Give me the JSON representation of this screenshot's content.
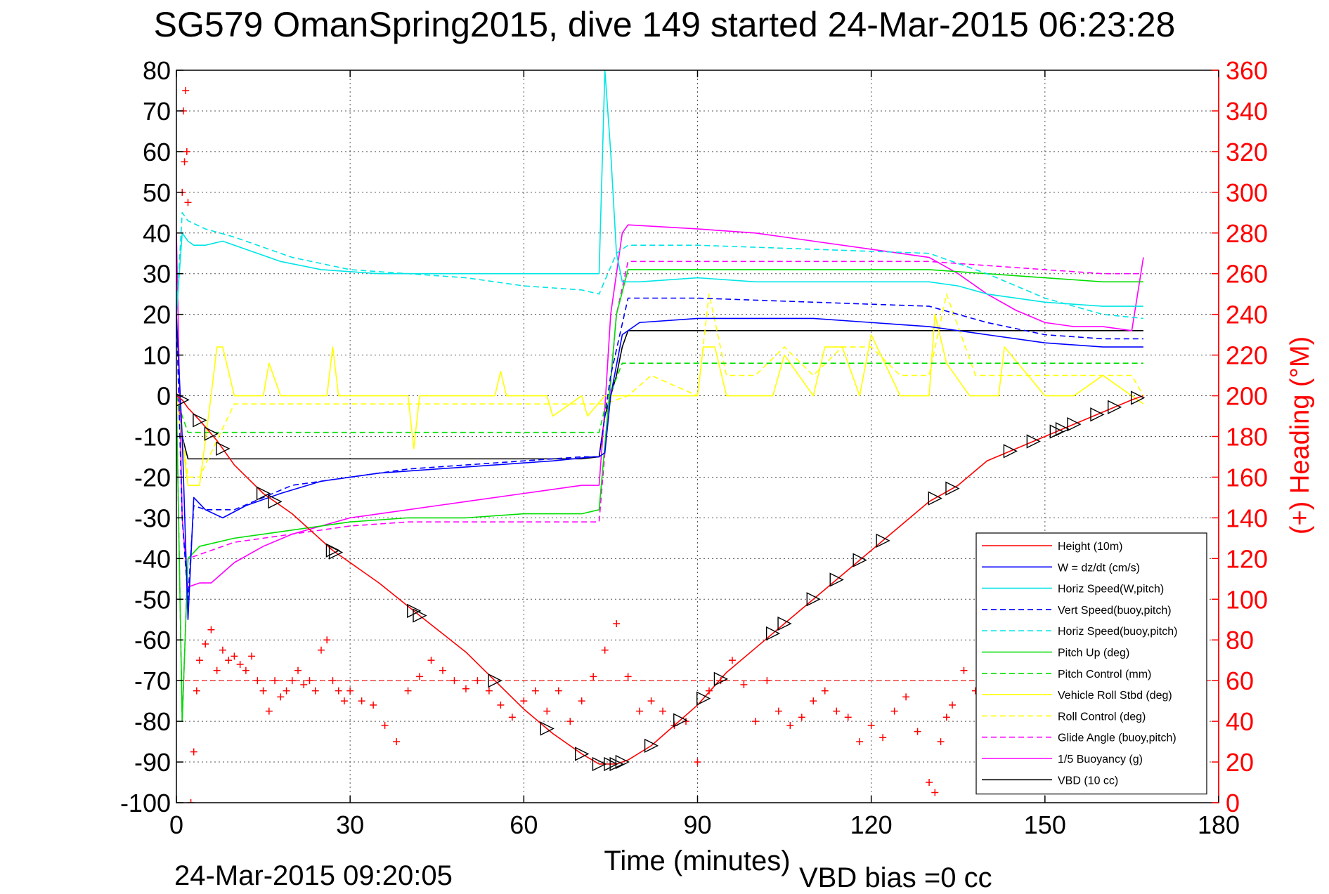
{
  "title": "SG579 OmanSpring2015, dive 149 started 24-Mar-2015 06:23:28",
  "footer": {
    "end_time": "24-Mar-2015 09:20:05",
    "vbd_bias": "VBD bias =0 cc"
  },
  "chart_data": {
    "type": "line",
    "xlabel": "Time (minutes)",
    "ylabel_right": "(+) Heading (°M)",
    "xlim": [
      0,
      180
    ],
    "ylim_left": [
      -100,
      80
    ],
    "ylim_right": [
      0,
      360
    ],
    "x_ticks": [
      0,
      30,
      60,
      90,
      120,
      150,
      180
    ],
    "y_ticks_left": [
      80,
      70,
      60,
      50,
      40,
      30,
      20,
      10,
      0,
      -10,
      -20,
      -30,
      -40,
      -50,
      -60,
      -70,
      -80,
      -90,
      -100
    ],
    "y_ticks_right": [
      360,
      340,
      320,
      300,
      280,
      260,
      240,
      220,
      200,
      180,
      160,
      140,
      120,
      100,
      80,
      60,
      40,
      20,
      0
    ],
    "grid": true,
    "legend_position": "bottom-right",
    "legend": [
      {
        "name": "Height (10m)",
        "color": "#ff0000",
        "dash": "solid"
      },
      {
        "name": "W = dz/dt (cm/s)",
        "color": "#0000ff",
        "dash": "solid"
      },
      {
        "name": "Horiz Speed(W,pitch)",
        "color": "#00e5e5",
        "dash": "solid"
      },
      {
        "name": "Vert Speed(buoy,pitch)",
        "color": "#0000ff",
        "dash": "dashed"
      },
      {
        "name": "Horiz Speed(buoy,pitch)",
        "color": "#00e5e5",
        "dash": "dashed"
      },
      {
        "name": "Pitch Up (deg)",
        "color": "#00dd00",
        "dash": "solid"
      },
      {
        "name": "Pitch Control (mm)",
        "color": "#00dd00",
        "dash": "dashed"
      },
      {
        "name": "Vehicle Roll Stbd (deg)",
        "color": "#ffff00",
        "dash": "solid"
      },
      {
        "name": "Roll Control (deg)",
        "color": "#ffff00",
        "dash": "dashed"
      },
      {
        "name": "Glide Angle (buoy,pitch)",
        "color": "#ff00ff",
        "dash": "dashed"
      },
      {
        "name": "1/5 Buoyancy (g)",
        "color": "#ff00ff",
        "dash": "solid"
      },
      {
        "name": "VBD (10 cc)",
        "color": "#000000",
        "dash": "solid"
      }
    ],
    "series": [
      {
        "name": "Height (10m)",
        "x": [
          0,
          1,
          2,
          4,
          7,
          10,
          15,
          20,
          27,
          35,
          42,
          50,
          55,
          60,
          65,
          70,
          73,
          76,
          78,
          82,
          86,
          90,
          95,
          100,
          105,
          110,
          115,
          120,
          125,
          130,
          135,
          140,
          145,
          150,
          155,
          160,
          165,
          167
        ],
        "y": [
          0,
          -1,
          -3,
          -6,
          -11,
          -17,
          -24,
          -29,
          -38,
          -46,
          -54,
          -63,
          -70,
          -77,
          -83,
          -88,
          -90.5,
          -90.5,
          -89.5,
          -86,
          -81,
          -76,
          -68,
          -62,
          -56,
          -50,
          -44,
          -38,
          -32,
          -26,
          -22,
          -16,
          -13,
          -10,
          -7,
          -4,
          -1,
          0
        ]
      },
      {
        "name": "W = dz/dt (cm/s)",
        "x": [
          0,
          1,
          2,
          3,
          5,
          8,
          12,
          18,
          25,
          35,
          45,
          55,
          65,
          72,
          73,
          74,
          75,
          77,
          80,
          90,
          100,
          110,
          120,
          130,
          135,
          140,
          150,
          160,
          167
        ],
        "y": [
          20,
          -10,
          -55,
          -25,
          -28,
          -30,
          -27,
          -24,
          -21,
          -19,
          -18,
          -17,
          -16,
          -15,
          -15,
          -14,
          0,
          15,
          18,
          19,
          19,
          19,
          18,
          17,
          16,
          15,
          13,
          12,
          12
        ]
      },
      {
        "name": "Horiz Speed(W,pitch)",
        "x": [
          0,
          1,
          2,
          3,
          5,
          8,
          12,
          18,
          25,
          35,
          45,
          55,
          65,
          72,
          73,
          74,
          75,
          76,
          77,
          80,
          90,
          100,
          110,
          120,
          130,
          135,
          140,
          150,
          160,
          167
        ],
        "y": [
          20,
          40,
          38,
          37,
          37,
          38,
          36,
          33,
          31,
          30,
          30,
          30,
          30,
          30,
          30,
          80,
          60,
          35,
          28,
          28,
          29,
          28,
          28,
          28,
          28,
          27,
          25,
          23,
          22,
          22
        ]
      },
      {
        "name": "Vert Speed(buoy,pitch)",
        "x": [
          0,
          1,
          2,
          3,
          5,
          10,
          20,
          30,
          40,
          50,
          60,
          70,
          73,
          75,
          78,
          90,
          110,
          130,
          140,
          150,
          160,
          167
        ],
        "y": [
          20,
          -30,
          -50,
          -27,
          -28,
          -28,
          -22,
          -20,
          -18,
          -17,
          -16,
          -15,
          -15,
          5,
          24,
          24,
          23,
          22,
          18,
          15,
          14,
          14
        ]
      },
      {
        "name": "Horiz Speed(buoy,pitch)",
        "x": [
          0,
          1,
          2,
          5,
          10,
          20,
          30,
          40,
          50,
          60,
          70,
          73,
          76,
          78,
          90,
          110,
          130,
          140,
          150,
          160,
          167
        ],
        "y": [
          20,
          45,
          43,
          41,
          39,
          34,
          31,
          30,
          29,
          27,
          26,
          25,
          35,
          37,
          37,
          36,
          35,
          30,
          24,
          20,
          19
        ]
      },
      {
        "name": "Pitch Up (deg)",
        "x": [
          0,
          1,
          2,
          4,
          10,
          20,
          30,
          40,
          50,
          60,
          70,
          73,
          76,
          78,
          90,
          110,
          130,
          140,
          150,
          160,
          167
        ],
        "y": [
          0,
          -80,
          -40,
          -37,
          -35,
          -33,
          -31,
          -30,
          -30,
          -29,
          -29,
          -28,
          20,
          31,
          31,
          31,
          31,
          30,
          29,
          28,
          28
        ]
      },
      {
        "name": "Pitch Control (mm)",
        "x": [
          0,
          1,
          2,
          4,
          40,
          73,
          74,
          77,
          100,
          130,
          167
        ],
        "y": [
          0,
          -5,
          -9,
          -9,
          -9,
          -9,
          -3,
          8,
          8,
          8,
          8
        ]
      },
      {
        "name": "Vehicle Roll Stbd (deg)",
        "x": [
          0,
          2,
          4,
          6,
          7,
          8,
          10,
          15,
          16,
          18,
          26,
          27,
          28,
          40,
          41,
          42,
          55,
          56,
          57,
          64,
          65,
          70,
          71,
          74,
          75,
          78,
          82,
          84,
          90,
          91,
          93,
          95,
          103,
          105,
          110,
          112,
          115,
          118,
          120,
          125,
          130,
          131,
          133,
          137,
          142,
          143,
          150,
          155,
          160,
          165,
          167
        ],
        "y": [
          0,
          -22,
          -22,
          0,
          12,
          12,
          0,
          0,
          8,
          0,
          0,
          12,
          0,
          0,
          -13,
          0,
          0,
          6,
          0,
          0,
          -5,
          0,
          -5,
          0,
          0,
          0,
          0,
          0,
          0,
          12,
          12,
          0,
          0,
          10,
          0,
          12,
          12,
          0,
          15,
          0,
          0,
          20,
          8,
          0,
          0,
          12,
          0,
          0,
          5,
          0,
          -2
        ]
      },
      {
        "name": "Roll Control (deg)",
        "x": [
          0,
          2,
          4,
          10,
          20,
          40,
          60,
          72,
          74,
          78,
          82,
          90,
          92,
          95,
          100,
          105,
          110,
          115,
          120,
          125,
          130,
          133,
          138,
          145,
          150,
          155,
          160,
          165,
          167
        ],
        "y": [
          0,
          -20,
          -20,
          -2,
          -2,
          -2,
          -2,
          -2,
          -2,
          0,
          5,
          0,
          25,
          5,
          5,
          12,
          5,
          12,
          12,
          5,
          5,
          25,
          5,
          5,
          5,
          5,
          5,
          5,
          0
        ]
      },
      {
        "name": "Glide Angle (buoy,pitch)",
        "x": [
          0,
          1,
          2,
          4,
          10,
          20,
          30,
          40,
          50,
          60,
          70,
          73,
          76,
          78,
          90,
          110,
          130,
          140,
          150,
          160,
          167
        ],
        "y": [
          0,
          -80,
          -40,
          -39,
          -36,
          -34,
          -32,
          -31,
          -31,
          -31,
          -31,
          -31,
          20,
          33,
          33,
          33,
          33,
          32,
          31,
          30,
          30
        ]
      },
      {
        "name": "1/5 Buoyancy (g)",
        "x": [
          0,
          1,
          2,
          4,
          6,
          10,
          15,
          20,
          25,
          30,
          40,
          50,
          60,
          70,
          73,
          74,
          75,
          77,
          78,
          90,
          100,
          110,
          120,
          130,
          135,
          140,
          145,
          150,
          155,
          160,
          165,
          167
        ],
        "y": [
          40,
          -30,
          -47,
          -46,
          -46,
          -41,
          -37,
          -34,
          -32,
          -30,
          -28,
          -26,
          -24,
          -22,
          -22,
          -3,
          20,
          40,
          42,
          41,
          40,
          38,
          36,
          34,
          30,
          25,
          21,
          18,
          17,
          17,
          16,
          34
        ]
      },
      {
        "name": "VBD (10 cc)",
        "x": [
          0,
          1,
          2,
          30,
          60,
          70,
          73,
          74,
          75,
          76,
          77,
          78,
          90,
          110,
          130,
          150,
          160,
          167
        ],
        "y": [
          0,
          -10,
          -15.5,
          -15.5,
          -15.5,
          -15.5,
          -15,
          -5,
          0,
          5,
          12,
          16,
          16,
          16,
          16,
          16,
          16,
          16
        ]
      }
    ],
    "heading_series": {
      "name": "(+) Heading (°M)",
      "color": "#ff0000",
      "marker": "+",
      "reference_line": 60,
      "x": [
        1,
        1.2,
        1.4,
        1.6,
        1.8,
        2,
        2.5,
        3,
        3.5,
        4,
        5,
        6,
        7,
        8,
        9,
        10,
        11,
        12,
        13,
        14,
        15,
        16,
        17,
        18,
        19,
        20,
        21,
        22,
        23,
        24,
        25,
        26,
        27,
        28,
        29,
        30,
        32,
        34,
        36,
        38,
        40,
        42,
        44,
        46,
        48,
        50,
        52,
        54,
        56,
        58,
        60,
        62,
        64,
        66,
        68,
        70,
        72,
        74,
        76,
        78,
        80,
        82,
        84,
        86,
        88,
        90,
        92,
        94,
        96,
        98,
        100,
        102,
        104,
        106,
        108,
        110,
        112,
        114,
        116,
        118,
        120,
        122,
        124,
        126,
        128,
        130,
        131,
        132,
        133,
        134,
        136,
        138
      ],
      "y": [
        300,
        340,
        315,
        350,
        320,
        295,
        0,
        25,
        55,
        70,
        78,
        85,
        65,
        75,
        70,
        72,
        68,
        65,
        72,
        60,
        55,
        45,
        60,
        52,
        55,
        60,
        65,
        58,
        60,
        55,
        75,
        80,
        60,
        55,
        50,
        55,
        50,
        48,
        38,
        30,
        55,
        62,
        70,
        65,
        60,
        56,
        60,
        55,
        48,
        42,
        50,
        55,
        45,
        55,
        40,
        50,
        62,
        75,
        88,
        62,
        45,
        50,
        45,
        38,
        40,
        20,
        55,
        60,
        70,
        58,
        40,
        60,
        45,
        38,
        42,
        50,
        55,
        45,
        42,
        30,
        38,
        32,
        45,
        52,
        35,
        10,
        5,
        30,
        42,
        48,
        65,
        55
      ]
    },
    "height_markers": {
      "x": [
        1,
        4,
        6,
        8,
        15,
        17,
        27,
        27.5,
        41,
        42,
        55,
        64,
        70,
        73,
        75,
        76,
        77,
        82,
        87,
        91,
        94,
        103,
        105,
        110,
        114,
        118,
        122,
        131,
        134,
        144,
        148,
        152,
        153,
        155,
        159,
        162,
        166
      ]
    }
  }
}
